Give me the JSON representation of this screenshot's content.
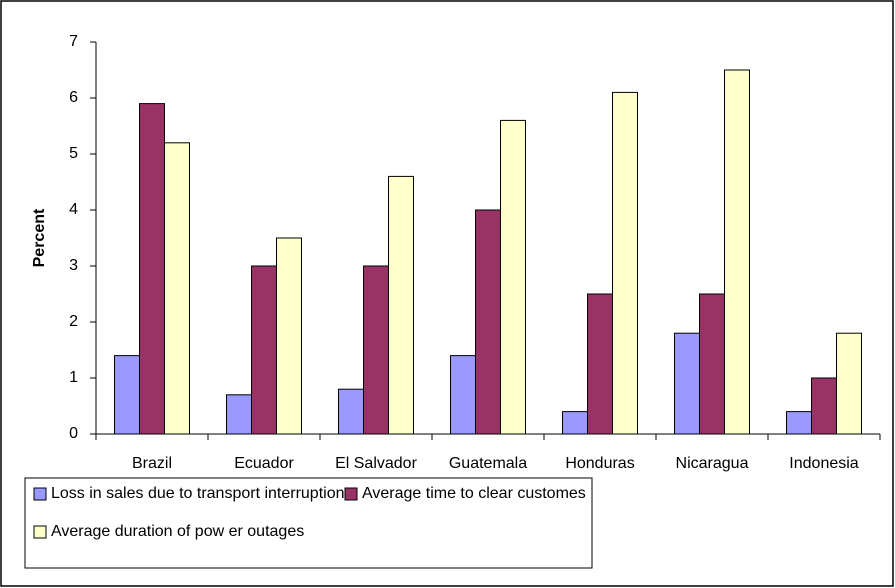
{
  "chart_data": {
    "type": "bar",
    "y_label": "Percent",
    "categories": [
      "Brazil",
      "Ecuador",
      "El Salvador",
      "Guatemala",
      "Honduras",
      "Nicaragua",
      "Indonesia"
    ],
    "series": [
      {
        "name": "Loss in sales due to transport interruptions",
        "color": "#9999ff",
        "values": [
          1.4,
          0.7,
          0.8,
          1.4,
          0.4,
          1.8,
          0.4
        ]
      },
      {
        "name": "Average time to clear customes",
        "color": "#993366",
        "values": [
          5.9,
          3.0,
          3.0,
          4.0,
          2.5,
          2.5,
          1.0
        ]
      },
      {
        "name": "Average duration of pow er outages",
        "color": "#ffffcc",
        "values": [
          5.2,
          3.5,
          4.6,
          5.6,
          6.1,
          6.5,
          1.8
        ]
      }
    ],
    "ylim": [
      0,
      7
    ],
    "yticks": [
      0,
      1,
      2,
      3,
      4,
      5,
      6,
      7
    ],
    "grid": false,
    "legend": "bottom"
  }
}
